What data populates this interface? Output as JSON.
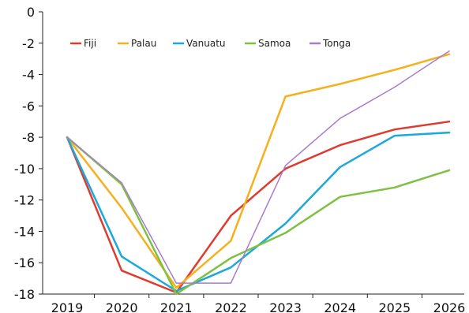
{
  "chart_data": {
    "type": "line",
    "x": [
      2019,
      2020,
      2021,
      2022,
      2023,
      2024,
      2025,
      2026
    ],
    "x_tick_labels": [
      "2019",
      "2020",
      "2021",
      "2022",
      "2023",
      "2024",
      "2025",
      "2026"
    ],
    "y_tick_labels": [
      "0",
      "-2",
      "-4",
      "-6",
      "-8",
      "-10",
      "-12",
      "-14",
      "-16",
      "-18"
    ],
    "y_ticks": [
      0,
      -2,
      -4,
      -6,
      -8,
      -10,
      -12,
      -14,
      -16,
      -18
    ],
    "ylim": [
      -18,
      0
    ],
    "xlim": [
      2019,
      2026
    ],
    "grid": false,
    "legend_position": "top-left",
    "title": "",
    "xlabel": "",
    "ylabel": "",
    "series": [
      {
        "name": "Fiji",
        "color": "#e03a2f",
        "values": [
          -8.0,
          -16.5,
          -17.9,
          -13.0,
          -10.0,
          -8.5,
          -7.5,
          -7.0
        ]
      },
      {
        "name": "Palau",
        "color": "#f6b01e",
        "values": [
          -8.0,
          -12.5,
          -17.6,
          -14.6,
          -5.4,
          -4.6,
          -3.7,
          -2.7
        ]
      },
      {
        "name": "Vanuatu",
        "color": "#1aa8dd",
        "values": [
          -8.0,
          -15.6,
          -17.8,
          -16.3,
          -13.5,
          -9.9,
          -7.9,
          -7.7
        ]
      },
      {
        "name": "Samoa",
        "color": "#7cc242",
        "values": [
          -8.0,
          -11.0,
          -18.0,
          -15.7,
          -14.1,
          -11.8,
          -11.2,
          -10.1
        ]
      },
      {
        "name": "Tonga",
        "color": "#a87ccb",
        "values": [
          -8.0,
          -10.9,
          -17.3,
          -17.3,
          -9.8,
          -6.8,
          -4.8,
          -2.5
        ]
      }
    ]
  }
}
